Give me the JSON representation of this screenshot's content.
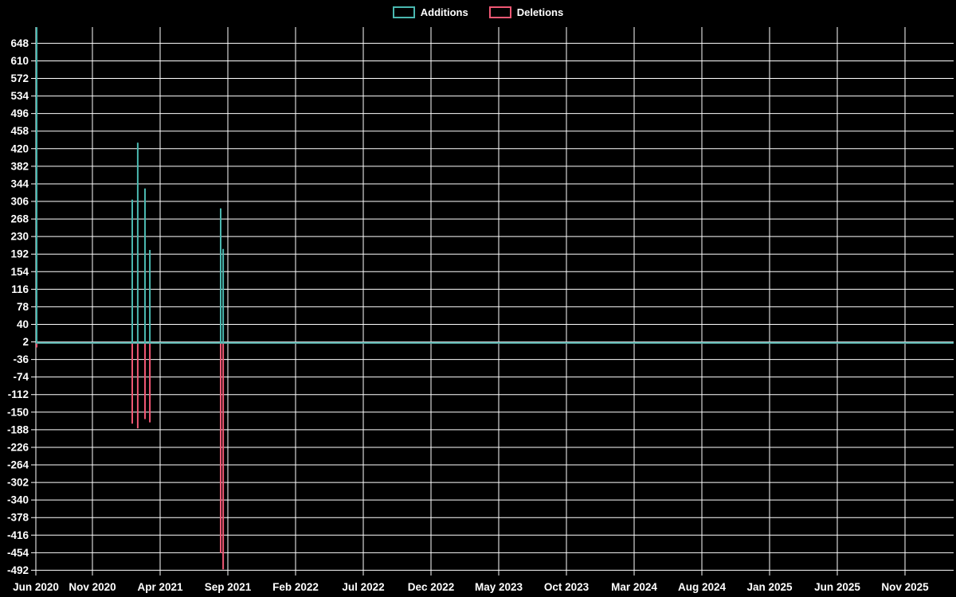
{
  "legend": {
    "items": [
      {
        "id": "additions",
        "label": "Additions",
        "color": "#4ab8b0"
      },
      {
        "id": "deletions",
        "label": "Deletions",
        "color": "#f05874"
      }
    ]
  },
  "chart_data": {
    "type": "line",
    "title": "",
    "xlabel": "",
    "ylabel": "",
    "background": "#000000",
    "grid": true,
    "grid_color": "#ffffff",
    "legend_position": "top-center",
    "x_axis": {
      "tick_labels": [
        "Jun 2020",
        "Nov 2020",
        "Apr 2021",
        "Sep 2021",
        "Feb 2022",
        "Jul 2022",
        "Dec 2022",
        "May 2023",
        "Oct 2023",
        "Mar 2024",
        "Aug 2024",
        "Jan 2025",
        "Jun 2025",
        "Nov 2025"
      ],
      "tick_months": [
        0,
        5,
        10,
        15,
        20,
        25,
        30,
        35,
        40,
        45,
        50,
        55,
        60,
        65
      ],
      "range_months": [
        0.82,
        68.6
      ]
    },
    "y_axis": {
      "tick_values": [
        648,
        610,
        572,
        534,
        496,
        458,
        420,
        382,
        344,
        306,
        268,
        230,
        192,
        154,
        116,
        78,
        40,
        2,
        -36,
        -74,
        -112,
        -150,
        -188,
        -226,
        -264,
        -302,
        -340,
        -378,
        -416,
        -454,
        -492
      ],
      "tick_step": 38,
      "plot_value_range": [
        -493,
        683
      ]
    },
    "series": [
      {
        "name": "Additions",
        "color": "#4ab8b0",
        "baseline_value": 0,
        "spikes": [
          {
            "month": 0.88,
            "approx_date": "2020-07-12",
            "value": 683
          },
          {
            "month": 7.94,
            "approx_date": "2021-01-31",
            "value": 310
          },
          {
            "month": 8.35,
            "approx_date": "2021-02-11",
            "value": 433
          },
          {
            "month": 8.88,
            "approx_date": "2021-02-27",
            "value": 334
          },
          {
            "month": 9.24,
            "approx_date": "2021-03-08",
            "value": 201
          },
          {
            "month": 14.47,
            "approx_date": "2021-08-15",
            "value": 291
          },
          {
            "month": 14.65,
            "approx_date": "2021-08-20",
            "value": 203
          }
        ]
      },
      {
        "name": "Deletions",
        "color": "#f05874",
        "baseline_value": 0,
        "spikes": [
          {
            "month": 0.88,
            "approx_date": "2020-07-12",
            "value": -10
          },
          {
            "month": 7.94,
            "approx_date": "2021-01-31",
            "value": -175
          },
          {
            "month": 8.35,
            "approx_date": "2021-02-11",
            "value": -185
          },
          {
            "month": 8.88,
            "approx_date": "2021-02-27",
            "value": -165
          },
          {
            "month": 9.24,
            "approx_date": "2021-03-08",
            "value": -172
          },
          {
            "month": 14.47,
            "approx_date": "2021-08-15",
            "value": -455
          },
          {
            "month": 14.65,
            "approx_date": "2021-08-20",
            "value": -490
          }
        ]
      }
    ]
  }
}
